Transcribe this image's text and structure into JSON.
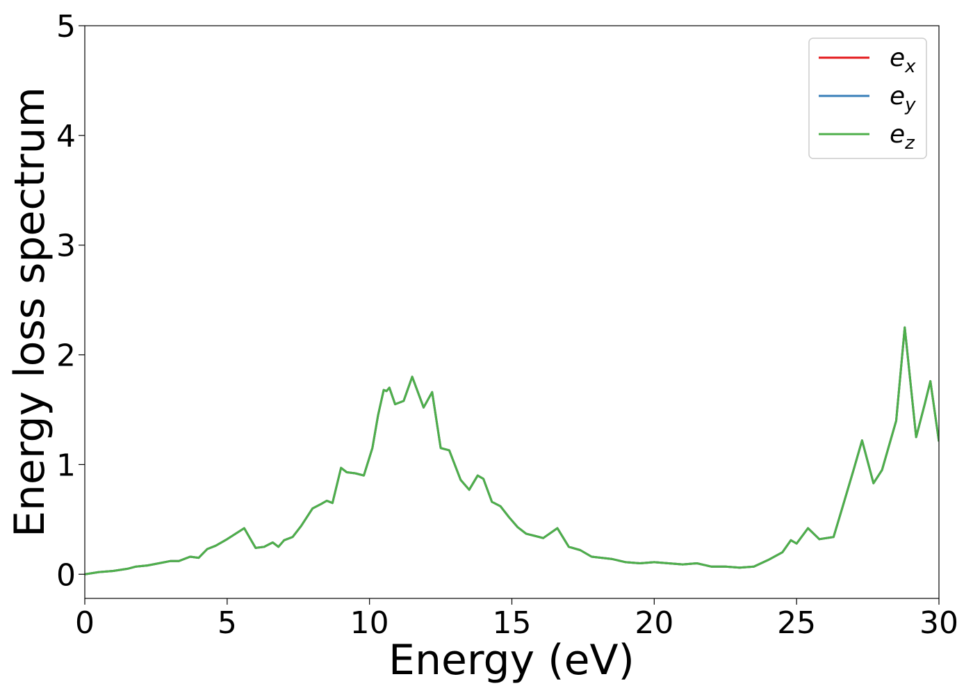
{
  "chart_data": {
    "type": "line",
    "xlabel": "Energy (eV)",
    "ylabel": "Energy loss spectrum",
    "xlim": [
      0,
      30
    ],
    "ylim": [
      -0.22,
      5.0
    ],
    "xticks": [
      "0",
      "5",
      "10",
      "15",
      "20",
      "25",
      "30"
    ],
    "yticks": [
      "0",
      "1",
      "2",
      "3",
      "4",
      "5"
    ],
    "grid": false,
    "legend_position": "top-right",
    "series": [
      {
        "name": "e_x",
        "legend_base": "e",
        "legend_sub": "x",
        "color": "#e41a1c",
        "x": [
          0,
          0.5,
          1,
          1.5,
          1.8,
          2.2,
          2.6,
          3.0,
          3.3,
          3.7,
          4.0,
          4.3,
          4.6,
          5.0,
          5.3,
          5.6,
          5.8,
          6.0,
          6.3,
          6.6,
          6.8,
          7.0,
          7.3,
          7.6,
          8.0,
          8.3,
          8.5,
          8.7,
          9.0,
          9.2,
          9.5,
          9.8,
          10.1,
          10.3,
          10.5,
          10.6,
          10.7,
          10.9,
          11.2,
          11.5,
          11.9,
          12.2,
          12.5,
          12.8,
          13.2,
          13.5,
          13.8,
          14.0,
          14.3,
          14.6,
          14.9,
          15.2,
          15.5,
          15.8,
          16.1,
          16.6,
          17.0,
          17.4,
          17.8,
          18.5,
          19.0,
          19.5,
          20.0,
          20.5,
          21.0,
          21.5,
          22.0,
          22.5,
          23.0,
          23.5,
          24.0,
          24.5,
          24.8,
          25.0,
          25.4,
          25.8,
          26.3,
          26.6,
          27.0,
          27.3,
          27.7,
          28.0,
          28.5,
          28.8,
          29.2,
          29.5,
          29.7,
          30.0
        ],
        "values": [
          0,
          0.02,
          0.03,
          0.05,
          0.07,
          0.08,
          0.1,
          0.12,
          0.12,
          0.16,
          0.15,
          0.23,
          0.26,
          0.32,
          0.37,
          0.42,
          0.33,
          0.24,
          0.25,
          0.29,
          0.25,
          0.31,
          0.34,
          0.44,
          0.6,
          0.64,
          0.67,
          0.65,
          0.97,
          0.93,
          0.92,
          0.9,
          1.15,
          1.45,
          1.68,
          1.67,
          1.7,
          1.55,
          1.58,
          1.8,
          1.52,
          1.66,
          1.15,
          1.13,
          0.86,
          0.77,
          0.9,
          0.87,
          0.66,
          0.62,
          0.52,
          0.43,
          0.37,
          0.35,
          0.33,
          0.42,
          0.25,
          0.22,
          0.16,
          0.14,
          0.11,
          0.1,
          0.11,
          0.1,
          0.09,
          0.1,
          0.07,
          0.07,
          0.06,
          0.07,
          0.13,
          0.2,
          0.31,
          0.28,
          0.42,
          0.32,
          0.34,
          0.6,
          0.95,
          1.22,
          0.83,
          0.95,
          1.4,
          2.25,
          1.25,
          1.55,
          1.76,
          1.21
        ]
      },
      {
        "name": "e_y",
        "legend_base": "e",
        "legend_sub": "y",
        "color": "#377eb8",
        "x": [
          0,
          0.5,
          1,
          1.5,
          1.8,
          2.2,
          2.6,
          3.0,
          3.3,
          3.7,
          4.0,
          4.3,
          4.6,
          5.0,
          5.3,
          5.6,
          5.8,
          6.0,
          6.3,
          6.6,
          6.8,
          7.0,
          7.3,
          7.6,
          8.0,
          8.3,
          8.5,
          8.7,
          9.0,
          9.2,
          9.5,
          9.8,
          10.1,
          10.3,
          10.5,
          10.6,
          10.7,
          10.9,
          11.2,
          11.5,
          11.9,
          12.2,
          12.5,
          12.8,
          13.2,
          13.5,
          13.8,
          14.0,
          14.3,
          14.6,
          14.9,
          15.2,
          15.5,
          15.8,
          16.1,
          16.6,
          17.0,
          17.4,
          17.8,
          18.5,
          19.0,
          19.5,
          20.0,
          20.5,
          21.0,
          21.5,
          22.0,
          22.5,
          23.0,
          23.5,
          24.0,
          24.5,
          24.8,
          25.0,
          25.4,
          25.8,
          26.3,
          26.6,
          27.0,
          27.3,
          27.7,
          28.0,
          28.5,
          28.8,
          29.2,
          29.5,
          29.7,
          30.0
        ],
        "values": [
          0,
          0.02,
          0.03,
          0.05,
          0.07,
          0.08,
          0.1,
          0.12,
          0.12,
          0.16,
          0.15,
          0.23,
          0.26,
          0.32,
          0.37,
          0.42,
          0.33,
          0.24,
          0.25,
          0.29,
          0.25,
          0.31,
          0.34,
          0.44,
          0.6,
          0.64,
          0.67,
          0.65,
          0.97,
          0.93,
          0.92,
          0.9,
          1.15,
          1.45,
          1.68,
          1.67,
          1.7,
          1.55,
          1.58,
          1.8,
          1.52,
          1.66,
          1.15,
          1.13,
          0.86,
          0.77,
          0.9,
          0.87,
          0.66,
          0.62,
          0.52,
          0.43,
          0.37,
          0.35,
          0.33,
          0.42,
          0.25,
          0.22,
          0.16,
          0.14,
          0.11,
          0.1,
          0.11,
          0.1,
          0.09,
          0.1,
          0.07,
          0.07,
          0.06,
          0.07,
          0.13,
          0.2,
          0.31,
          0.28,
          0.42,
          0.32,
          0.34,
          0.6,
          0.95,
          1.22,
          0.83,
          0.95,
          1.4,
          2.25,
          1.25,
          1.55,
          1.76,
          1.21
        ]
      },
      {
        "name": "e_z",
        "legend_base": "e",
        "legend_sub": "z",
        "color": "#4daf4a",
        "x": [
          0,
          0.5,
          1,
          1.5,
          1.8,
          2.2,
          2.6,
          3.0,
          3.3,
          3.7,
          4.0,
          4.3,
          4.6,
          5.0,
          5.3,
          5.6,
          5.8,
          6.0,
          6.3,
          6.6,
          6.8,
          7.0,
          7.3,
          7.6,
          8.0,
          8.3,
          8.5,
          8.7,
          9.0,
          9.2,
          9.5,
          9.8,
          10.1,
          10.3,
          10.5,
          10.6,
          10.7,
          10.9,
          11.2,
          11.5,
          11.9,
          12.2,
          12.5,
          12.8,
          13.2,
          13.5,
          13.8,
          14.0,
          14.3,
          14.6,
          14.9,
          15.2,
          15.5,
          15.8,
          16.1,
          16.6,
          17.0,
          17.4,
          17.8,
          18.5,
          19.0,
          19.5,
          20.0,
          20.5,
          21.0,
          21.5,
          22.0,
          22.5,
          23.0,
          23.5,
          24.0,
          24.5,
          24.8,
          25.0,
          25.4,
          25.8,
          26.3,
          26.6,
          27.0,
          27.3,
          27.7,
          28.0,
          28.5,
          28.8,
          29.2,
          29.5,
          29.7,
          30.0
        ],
        "values": [
          0,
          0.02,
          0.03,
          0.05,
          0.07,
          0.08,
          0.1,
          0.12,
          0.12,
          0.16,
          0.15,
          0.23,
          0.26,
          0.32,
          0.37,
          0.42,
          0.33,
          0.24,
          0.25,
          0.29,
          0.25,
          0.31,
          0.34,
          0.44,
          0.6,
          0.64,
          0.67,
          0.65,
          0.97,
          0.93,
          0.92,
          0.9,
          1.15,
          1.45,
          1.68,
          1.67,
          1.7,
          1.55,
          1.58,
          1.8,
          1.52,
          1.66,
          1.15,
          1.13,
          0.86,
          0.77,
          0.9,
          0.87,
          0.66,
          0.62,
          0.52,
          0.43,
          0.37,
          0.35,
          0.33,
          0.42,
          0.25,
          0.22,
          0.16,
          0.14,
          0.11,
          0.1,
          0.11,
          0.1,
          0.09,
          0.1,
          0.07,
          0.07,
          0.06,
          0.07,
          0.13,
          0.2,
          0.31,
          0.28,
          0.42,
          0.32,
          0.34,
          0.6,
          0.95,
          1.22,
          0.83,
          0.95,
          1.4,
          2.25,
          1.25,
          1.55,
          1.76,
          1.21
        ]
      }
    ]
  }
}
